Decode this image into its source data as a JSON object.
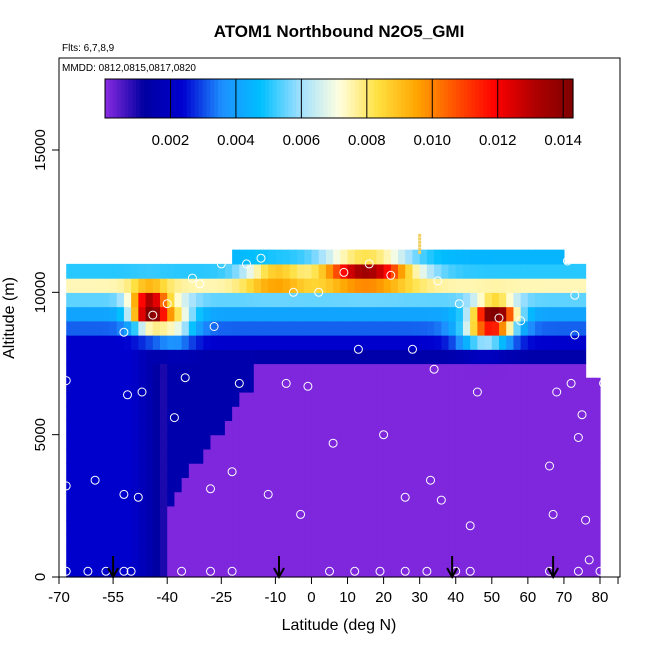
{
  "chart_data": {
    "type": "heatmap",
    "title": "ATOM1 Northbound N2O5_GMI",
    "subtitle_line1": "Flts: 6,7,8,9",
    "subtitle_line2": "MMDD: 0812,0815,0817,0820",
    "xlabel": "Latitude (deg N)",
    "ylabel": "Altitude (m)",
    "xlim": [
      -70,
      85
    ],
    "ylim": [
      0,
      17500
    ],
    "xticks": [
      -70,
      -55,
      -40,
      -25,
      -10,
      0,
      10,
      20,
      30,
      40,
      50,
      60,
      70,
      80
    ],
    "xtick_labels": [
      "-70",
      "-55",
      "-40",
      "-25",
      "-10",
      "0",
      "10",
      "20",
      "30",
      "40",
      "50",
      "60",
      "70",
      "80"
    ],
    "yticks": [
      0,
      5000,
      10000,
      15000
    ],
    "ytick_labels": [
      "0",
      "5000",
      "10000",
      "15000"
    ],
    "colorbar": {
      "min": 0.0,
      "max": 0.0143,
      "ticks": [
        0.002,
        0.004,
        0.006,
        0.008,
        0.01,
        0.012,
        0.014
      ],
      "tick_labels": [
        "0.002",
        "0.004",
        "0.006",
        "0.008",
        "0.010",
        "0.012",
        "0.014"
      ],
      "colors": [
        "#8a2be2",
        "#0000a0",
        "#0000d0",
        "#1e90ff",
        "#00bfff",
        "#a0e0ff",
        "#ffffe0",
        "#ffe040",
        "#ffa500",
        "#ff5000",
        "#ff0000",
        "#b00000",
        "#800000"
      ]
    },
    "grid_field": {
      "lat_min": -68,
      "lat_max": 80,
      "lat_step": 2,
      "alt_min": 0,
      "alt_max": 11500,
      "alt_step": 500,
      "top_altitude_south_of_-23": 11000,
      "top_altitude_north_of_-23": 11500,
      "top_altitude_north_of_70": 11000,
      "top_altitude_north_of_76": 7000
    },
    "features": [
      {
        "name": "southern ozone-free lower troposphere",
        "lat": [
          -68,
          -40
        ],
        "alt": [
          0,
          11000
        ],
        "value": 0.0015
      },
      {
        "name": "upper tropospheric band",
        "lat": [
          -68,
          80
        ],
        "alt": [
          8500,
          11500
        ],
        "value": 0.005
      },
      {
        "name": "southern maximum",
        "lat": [
          -50,
          -40
        ],
        "alt": [
          9000,
          10000
        ],
        "value": 0.011
      },
      {
        "name": "tropical upper maximum",
        "lat": [
          5,
          30
        ],
        "alt": [
          10500,
          11000
        ],
        "value": 0.01
      },
      {
        "name": "northern maximum",
        "lat": [
          45,
          55
        ],
        "alt": [
          9000,
          9500
        ],
        "value": 0.012
      },
      {
        "name": "lower troposphere background",
        "lat": [
          -40,
          80
        ],
        "alt": [
          0,
          7500
        ],
        "value": 0.0001
      }
    ],
    "sample_points": [
      [
        -68,
        200
      ],
      [
        -68,
        3200
      ],
      [
        -68,
        6900
      ],
      [
        -62,
        200
      ],
      [
        -60,
        3400
      ],
      [
        -57,
        200
      ],
      [
        -52,
        200
      ],
      [
        -52,
        2900
      ],
      [
        -50,
        200
      ],
      [
        -48,
        2800
      ],
      [
        -47,
        6500
      ],
      [
        -51,
        6400
      ],
      [
        -52,
        8600
      ],
      [
        -44,
        9200
      ],
      [
        -40,
        9600
      ],
      [
        -38,
        5600
      ],
      [
        -36,
        200
      ],
      [
        -35,
        7000
      ],
      [
        -33,
        10500
      ],
      [
        -31,
        10300
      ],
      [
        -28,
        200
      ],
      [
        -28,
        3100
      ],
      [
        -27,
        8800
      ],
      [
        -25,
        11000
      ],
      [
        -22,
        200
      ],
      [
        -22,
        3700
      ],
      [
        -20,
        6800
      ],
      [
        -18,
        11000
      ],
      [
        -14,
        11200
      ],
      [
        -12,
        2900
      ],
      [
        -7,
        6800
      ],
      [
        -5,
        10000
      ],
      [
        -3,
        2200
      ],
      [
        -1,
        6700
      ],
      [
        2,
        10000
      ],
      [
        5,
        200
      ],
      [
        6,
        4700
      ],
      [
        9,
        10700
      ],
      [
        12,
        200
      ],
      [
        13,
        8000
      ],
      [
        16,
        11000
      ],
      [
        19,
        200
      ],
      [
        20,
        5000
      ],
      [
        22,
        10600
      ],
      [
        26,
        200
      ],
      [
        26,
        2800
      ],
      [
        28,
        8000
      ],
      [
        32,
        200
      ],
      [
        33,
        3400
      ],
      [
        34,
        7300
      ],
      [
        35,
        10400
      ],
      [
        36,
        2700
      ],
      [
        40,
        200
      ],
      [
        41,
        9600
      ],
      [
        44,
        200
      ],
      [
        44,
        1800
      ],
      [
        46,
        6500
      ],
      [
        52,
        9100
      ],
      [
        58,
        9000
      ],
      [
        66,
        200
      ],
      [
        66,
        3900
      ],
      [
        67,
        2200
      ],
      [
        68,
        6500
      ],
      [
        71,
        11100
      ],
      [
        72,
        6800
      ],
      [
        73,
        8500
      ],
      [
        73,
        9900
      ],
      [
        74,
        200
      ],
      [
        74,
        4900
      ],
      [
        75,
        5700
      ],
      [
        76,
        2000
      ],
      [
        77,
        600
      ],
      [
        79,
        9800
      ],
      [
        80,
        200
      ],
      [
        81,
        6800
      ]
    ],
    "arrows_lat": [
      -55,
      -9,
      39,
      67
    ],
    "marker_lat": 30,
    "marker_alt": [
      11400,
      12000
    ]
  }
}
